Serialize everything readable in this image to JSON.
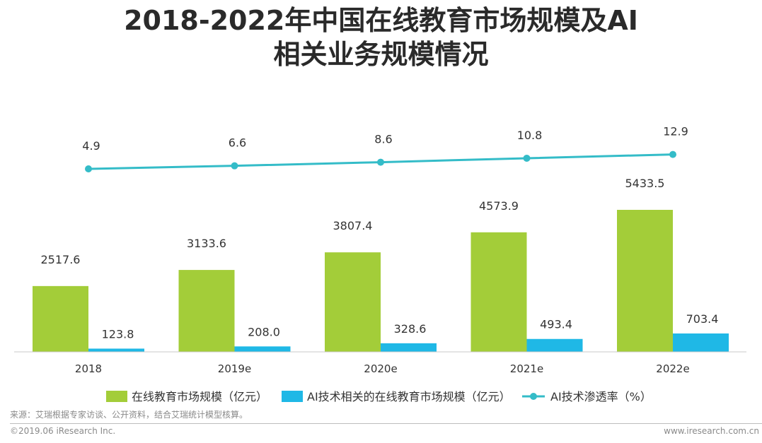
{
  "title": {
    "line1": "2018-2022年中国在线教育市场规模及AI",
    "line2": "相关业务规模情况"
  },
  "colors": {
    "green": "#a3cd39",
    "blue": "#1fb8e6",
    "teal": "#34bcc8"
  },
  "chart_data": {
    "type": "bar",
    "categories": [
      "2018",
      "2019e",
      "2020e",
      "2021e",
      "2022e"
    ],
    "series": [
      {
        "name": "在线教育市场规模（亿元）",
        "type": "bar",
        "values": [
          2517.6,
          3133.6,
          3807.4,
          4573.9,
          5433.5
        ],
        "labels": [
          "2517.6",
          "3133.6",
          "3807.4",
          "4573.9",
          "5433.5"
        ]
      },
      {
        "name": "AI技术相关的在线教育市场规模（亿元）",
        "type": "bar",
        "values": [
          123.8,
          208.0,
          328.6,
          493.4,
          703.4
        ],
        "labels": [
          "123.8",
          "208.0",
          "328.6",
          "493.4",
          "703.4"
        ]
      },
      {
        "name": "AI技术渗透率（%）",
        "type": "line",
        "values": [
          4.9,
          6.6,
          8.6,
          10.8,
          12.9
        ],
        "labels": [
          "4.9",
          "6.6",
          "8.6",
          "10.8",
          "12.9"
        ]
      }
    ],
    "legend_position": "bottom",
    "grid": false
  },
  "footer": {
    "source": "来源：艾瑞根据专家访谈、公开资料，结合艾瑞统计模型核算。",
    "copyright": "©2019.06 iResearch Inc.",
    "website": "www.iresearch.com.cn"
  }
}
